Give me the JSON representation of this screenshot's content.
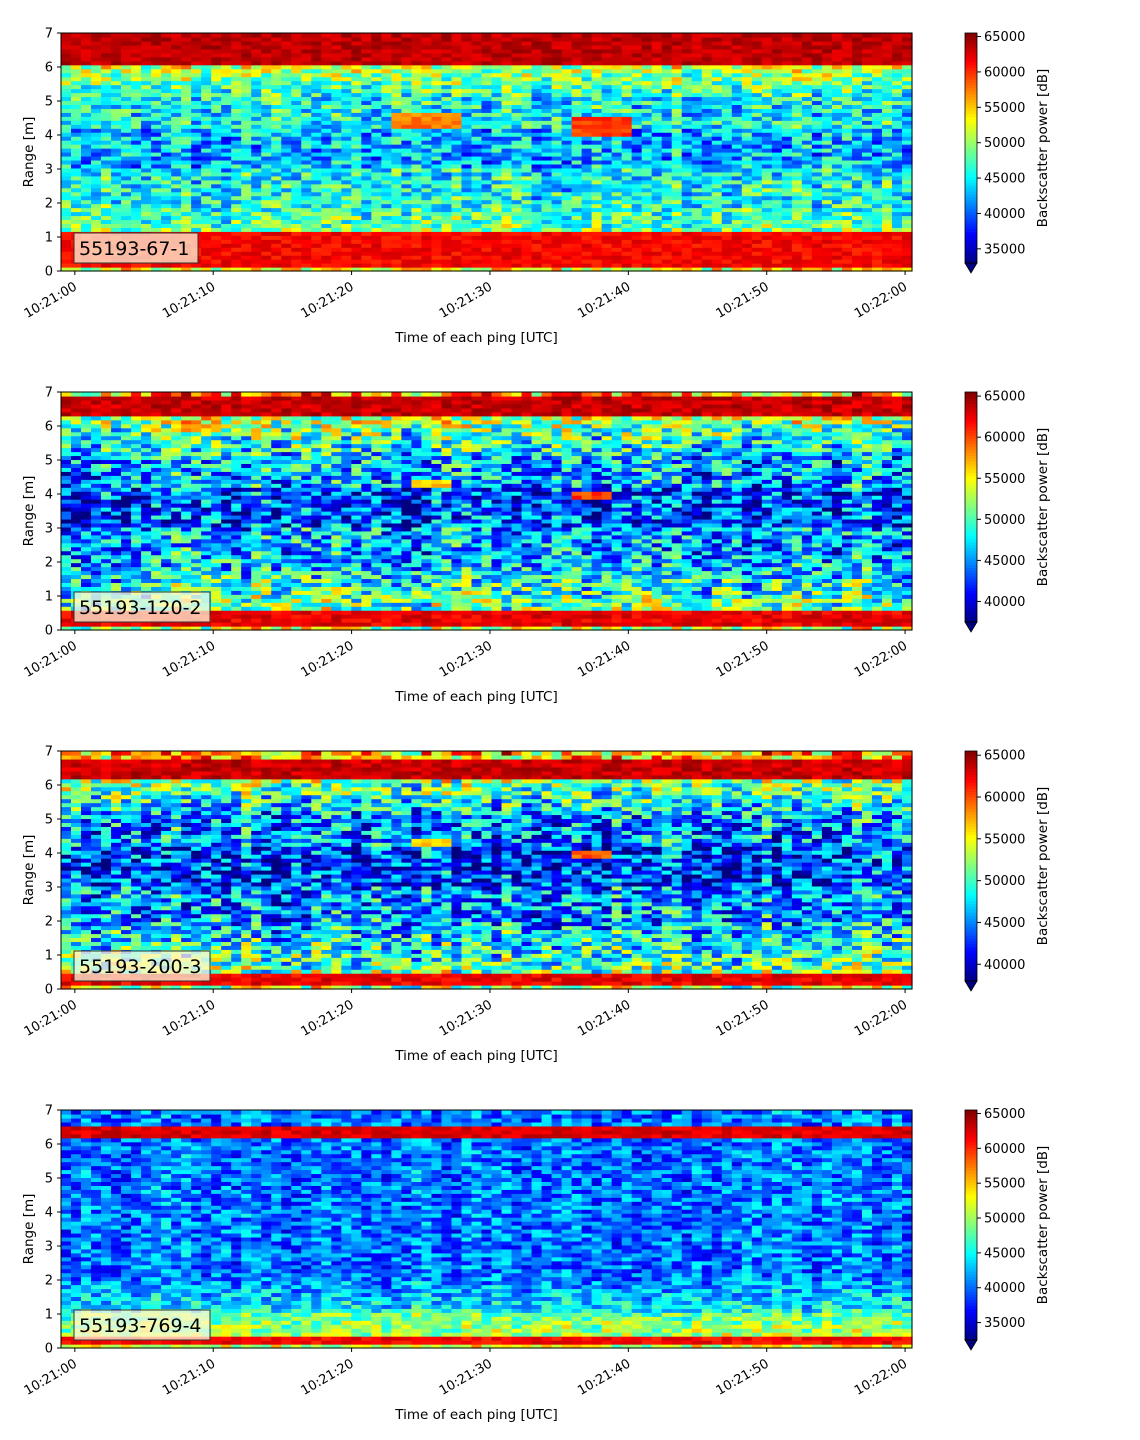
{
  "chart_data": [
    {
      "type": "heatmap",
      "panel_label": "55193-67-1",
      "xlabel": "Time of each ping [UTC]",
      "ylabel": "Range [m]",
      "x_ticks": [
        "10:21:00",
        "10:21:10",
        "10:21:20",
        "10:21:30",
        "10:21:40",
        "10:21:50",
        "10:22:00"
      ],
      "y_ticks": [
        "0",
        "1",
        "2",
        "3",
        "4",
        "5",
        "6",
        "7"
      ],
      "xlim": [
        "10:20:59",
        "10:22:00.5"
      ],
      "ylim": [
        0,
        7
      ],
      "colormap": "jet",
      "colorbar": {
        "label": "Backscatter power [dB]",
        "ticks": [
          "35000",
          "40000",
          "45000",
          "50000",
          "55000",
          "60000",
          "65000"
        ],
        "range": [
          33000,
          65500
        ],
        "extend": "min"
      },
      "features": [
        {
          "range_m": [
            6.1,
            7.0
          ],
          "level": 65000
        },
        {
          "range_m": [
            0.15,
            1.2
          ],
          "level": 63000
        },
        {
          "range_m": [
            4.2,
            4.7
          ],
          "time": [
            "10:21:23",
            "10:21:28"
          ],
          "level": 59000
        },
        {
          "range_m": [
            4.0,
            4.5
          ],
          "time": [
            "10:21:36",
            "10:21:40"
          ],
          "level": 61000
        }
      ]
    },
    {
      "type": "heatmap",
      "panel_label": "55193-120-2",
      "xlabel": "Time of each ping [UTC]",
      "ylabel": "Range [m]",
      "x_ticks": [
        "10:21:00",
        "10:21:10",
        "10:21:20",
        "10:21:30",
        "10:21:40",
        "10:21:50",
        "10:22:00"
      ],
      "y_ticks": [
        "0",
        "1",
        "2",
        "3",
        "4",
        "5",
        "6",
        "7"
      ],
      "xlim": [
        "10:20:59",
        "10:22:00.5"
      ],
      "ylim": [
        0,
        7
      ],
      "colormap": "jet",
      "colorbar": {
        "label": "Backscatter power [dB]",
        "ticks": [
          "40000",
          "45000",
          "50000",
          "55000",
          "60000",
          "65000"
        ],
        "range": [
          37500,
          65500
        ],
        "extend": "min"
      },
      "features": [
        {
          "range_m": [
            6.3,
            6.9
          ],
          "level": 65000
        },
        {
          "range_m": [
            0.15,
            0.55
          ],
          "level": 64000
        },
        {
          "range_m": [
            4.25,
            4.45
          ],
          "time": [
            "10:21:24",
            "10:21:27"
          ],
          "level": 58000
        },
        {
          "range_m": [
            3.9,
            4.1
          ],
          "time": [
            "10:21:36",
            "10:21:39"
          ],
          "level": 62000
        }
      ]
    },
    {
      "type": "heatmap",
      "panel_label": "55193-200-3",
      "xlabel": "Time of each ping [UTC]",
      "ylabel": "Range [m]",
      "x_ticks": [
        "10:21:00",
        "10:21:10",
        "10:21:20",
        "10:21:30",
        "10:21:40",
        "10:21:50",
        "10:22:00"
      ],
      "y_ticks": [
        "0",
        "1",
        "2",
        "3",
        "4",
        "5",
        "6",
        "7"
      ],
      "xlim": [
        "10:20:59",
        "10:22:00.5"
      ],
      "ylim": [
        0,
        7
      ],
      "colormap": "jet",
      "colorbar": {
        "label": "Backscatter power [dB]",
        "ticks": [
          "40000",
          "45000",
          "50000",
          "55000",
          "60000",
          "65000"
        ],
        "range": [
          38000,
          65500
        ],
        "extend": "min"
      },
      "features": [
        {
          "range_m": [
            6.2,
            6.8
          ],
          "level": 65000
        },
        {
          "range_m": [
            0.15,
            0.5
          ],
          "level": 64000
        },
        {
          "range_m": [
            4.2,
            4.4
          ],
          "time": [
            "10:21:24",
            "10:21:27"
          ],
          "level": 58000
        },
        {
          "range_m": [
            3.9,
            4.1
          ],
          "time": [
            "10:21:36",
            "10:21:39"
          ],
          "level": 61000
        }
      ]
    },
    {
      "type": "heatmap",
      "panel_label": "55193-769-4",
      "xlabel": "Time of each ping [UTC]",
      "ylabel": "Range [m]",
      "x_ticks": [
        "10:21:00",
        "10:21:10",
        "10:21:20",
        "10:21:30",
        "10:21:40",
        "10:21:50",
        "10:22:00"
      ],
      "y_ticks": [
        "0",
        "1",
        "2",
        "3",
        "4",
        "5",
        "6",
        "7"
      ],
      "xlim": [
        "10:20:59",
        "10:22:00.5"
      ],
      "ylim": [
        0,
        7
      ],
      "colormap": "jet",
      "colorbar": {
        "label": "Backscatter power [dB]",
        "ticks": [
          "35000",
          "40000",
          "45000",
          "50000",
          "55000",
          "60000",
          "65000"
        ],
        "range": [
          32500,
          65500
        ],
        "extend": "min"
      },
      "features": [
        {
          "range_m": [
            6.2,
            6.5
          ],
          "level": 64000
        },
        {
          "range_m": [
            0.15,
            0.4
          ],
          "level": 63000
        }
      ]
    }
  ]
}
